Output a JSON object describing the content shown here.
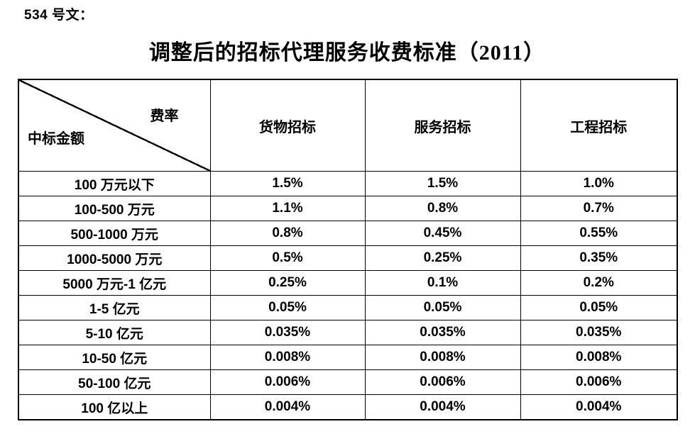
{
  "document": {
    "doc_label": "534 号文：",
    "title": "调整后的招标代理服务收费标准（2011）"
  },
  "table": {
    "corner_top_right": "费率",
    "corner_bottom_left": "中标金额",
    "columns": [
      "货物招标",
      "服务招标",
      "工程招标"
    ],
    "rows": [
      {
        "label": "100 万元以下",
        "values": [
          "1.5%",
          "1.5%",
          "1.0%"
        ]
      },
      {
        "label": "100-500 万元",
        "values": [
          "1.1%",
          "0.8%",
          "0.7%"
        ]
      },
      {
        "label": "500-1000 万元",
        "values": [
          "0.8%",
          "0.45%",
          "0.55%"
        ]
      },
      {
        "label": "1000-5000 万元",
        "values": [
          "0.5%",
          "0.25%",
          "0.35%"
        ]
      },
      {
        "label": "5000 万元-1 亿元",
        "values": [
          "0.25%",
          "0.1%",
          "0.2%"
        ]
      },
      {
        "label": "1-5 亿元",
        "values": [
          "0.05%",
          "0.05%",
          "0.05%"
        ]
      },
      {
        "label": "5-10 亿元",
        "values": [
          "0.035%",
          "0.035%",
          "0.035%"
        ]
      },
      {
        "label": "10-50 亿元",
        "values": [
          "0.008%",
          "0.008%",
          "0.008%"
        ]
      },
      {
        "label": "50-100 亿元",
        "values": [
          "0.006%",
          "0.006%",
          "0.006%"
        ]
      },
      {
        "label": "100 亿以上",
        "values": [
          "0.004%",
          "0.004%",
          "0.004%"
        ]
      }
    ]
  },
  "colors": {
    "text": "#000000",
    "border": "#000000",
    "page_background": "#ffffff"
  }
}
